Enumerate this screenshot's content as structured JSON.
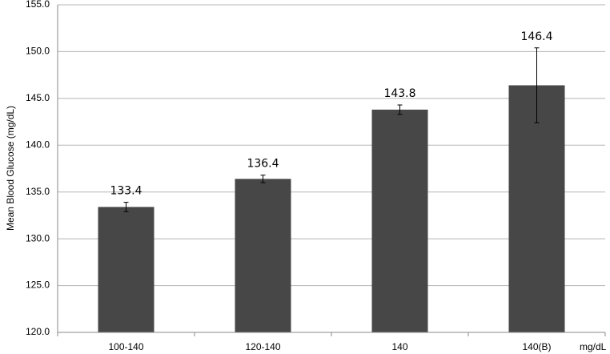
{
  "chart_data": {
    "type": "bar",
    "y_axis_label": "Mean Blood Glucose (mg/dL)",
    "x_axis_label": "mg/dL",
    "categories": [
      "100-140",
      "120-140",
      "140",
      "140(B)"
    ],
    "values": [
      133.4,
      136.4,
      143.8,
      146.4
    ],
    "errors": [
      0.5,
      0.4,
      0.5,
      4.0
    ],
    "color": "#474747",
    "ylim": [
      120,
      155
    ],
    "yticks": [
      {
        "value": 120,
        "label": "120.0"
      },
      {
        "value": 125,
        "label": "125.0"
      },
      {
        "value": 130,
        "label": "130.0"
      },
      {
        "value": 135,
        "label": "135.0"
      },
      {
        "value": 140,
        "label": "140.0"
      },
      {
        "value": 145,
        "label": "145.0"
      },
      {
        "value": 150,
        "label": "150.0"
      },
      {
        "value": 155,
        "label": "155.0"
      }
    ],
    "grid": true
  }
}
